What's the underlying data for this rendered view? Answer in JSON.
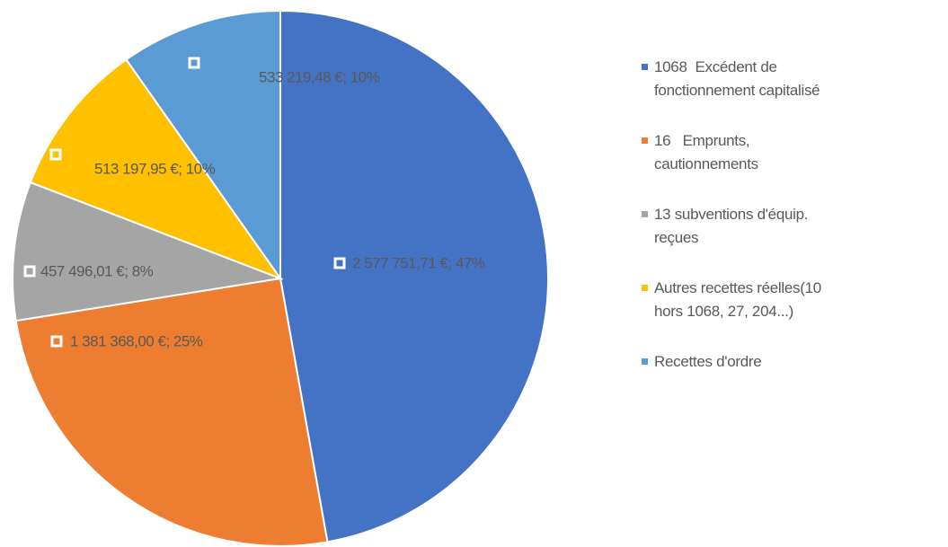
{
  "chart_data": {
    "type": "pie",
    "categories": [
      "1068  Excédent de fonctionnement capitalisé",
      "16   Emprunts, cautionnements",
      "13 subventions d'équip. reçues",
      "Autres recettes réelles(10 hors 1068, 27, 204...)",
      "Recettes d'ordre"
    ],
    "values": [
      2577751.71,
      1381368.0,
      457496.01,
      513197.95,
      533219.48
    ],
    "value_labels": [
      "2 577 751,71 €; 47%",
      "1 381 368,00 €; 25%",
      "457 496,01 €; 8%",
      "513 197,95 €; 10%",
      "533 219,48 €; 10%"
    ],
    "colors": [
      "#4472c4",
      "#ed7d31",
      "#a5a5a5",
      "#ffc000",
      "#5b9bd5"
    ],
    "legend": "right"
  }
}
